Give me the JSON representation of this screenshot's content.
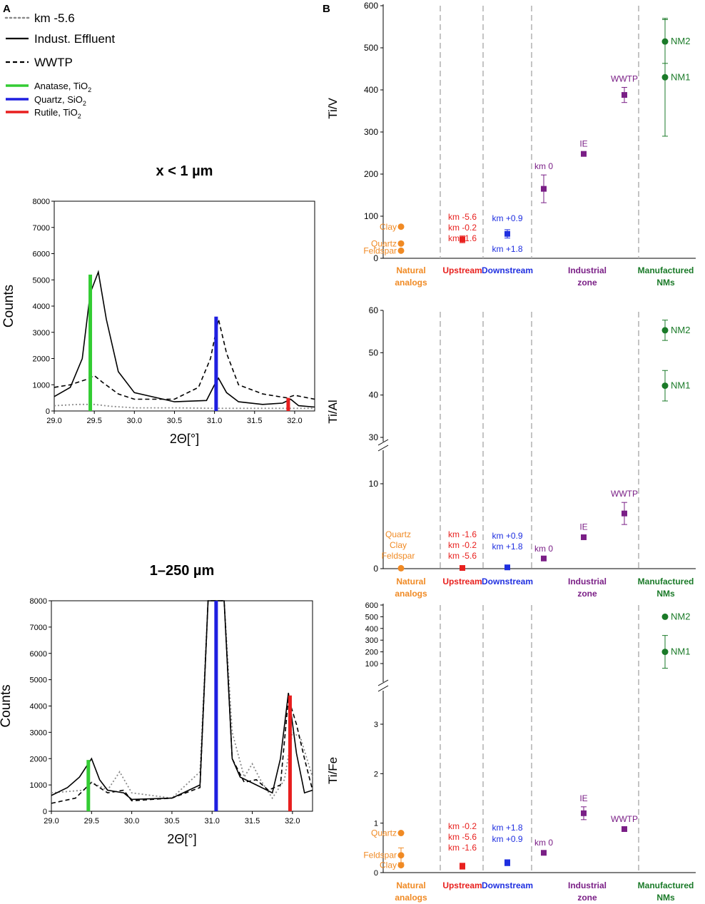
{
  "panel_labels": {
    "a": "A",
    "b": "B"
  },
  "colors": {
    "anatase": "#33cc33",
    "quartz": "#1f1fe0",
    "rutile": "#e81e1e",
    "natural": "#f08a24",
    "upstream": "#e8201e",
    "downstream": "#1f2fe0",
    "industrial": "#7a1f86",
    "nms": "#1a7a28",
    "grid": "#b5b5b5"
  },
  "legend": {
    "km56": "km -5.6",
    "ie": "Indust. Effluent",
    "wwtp": "WWTP",
    "anatase": "Anatase, TiO",
    "quartz": "Quartz, SiO",
    "rutile": "Rutile, TiO",
    "sub": "2"
  },
  "categories": [
    {
      "line1": "Natural",
      "line2": "analogs",
      "color": "#f08a24"
    },
    {
      "line1": "Upstream",
      "line2": "",
      "color": "#e8201e"
    },
    {
      "line1": "Downstream",
      "line2": "",
      "color": "#1f2fe0"
    },
    {
      "line1": "Industrial",
      "line2": "zone",
      "color": "#7a1f86"
    },
    {
      "line1": "Manufactured",
      "line2": "NMs",
      "color": "#1a7a28"
    }
  ],
  "chart_data": [
    {
      "type": "line",
      "title": "x < 1 µm",
      "xlabel": "2Θ[°]",
      "ylabel": "Counts",
      "xlim": [
        29.0,
        32.25
      ],
      "ylim": [
        0,
        8000
      ],
      "xticks": [
        29.0,
        29.5,
        30.0,
        30.5,
        31.0,
        31.5,
        32.0
      ],
      "yticks": [
        0,
        1000,
        2000,
        3000,
        4000,
        5000,
        6000,
        7000,
        8000
      ],
      "series": [
        {
          "name": "km -5.6",
          "style": "dotted",
          "x": [
            29.0,
            29.3,
            29.5,
            29.7,
            30.0,
            30.5,
            31.0,
            31.5,
            32.0,
            32.25
          ],
          "y": [
            200,
            250,
            250,
            180,
            120,
            120,
            100,
            100,
            100,
            100
          ]
        },
        {
          "name": "Indust. Effluent",
          "style": "solid",
          "x": [
            29.0,
            29.2,
            29.35,
            29.45,
            29.55,
            29.65,
            29.8,
            30.0,
            30.5,
            30.9,
            31.0,
            31.05,
            31.15,
            31.3,
            31.6,
            31.85,
            31.95,
            32.05,
            32.25
          ],
          "y": [
            550,
            900,
            2000,
            4500,
            5300,
            3500,
            1500,
            700,
            350,
            400,
            1000,
            1250,
            700,
            350,
            250,
            300,
            450,
            200,
            150
          ]
        },
        {
          "name": "WWTP",
          "style": "dashed",
          "x": [
            29.0,
            29.2,
            29.4,
            29.5,
            29.6,
            29.8,
            30.0,
            30.5,
            30.8,
            30.95,
            31.05,
            31.15,
            31.3,
            31.6,
            31.9,
            32.0,
            32.25
          ],
          "y": [
            900,
            1000,
            1200,
            1350,
            1100,
            650,
            450,
            450,
            900,
            2000,
            3500,
            2200,
            1000,
            650,
            500,
            600,
            450
          ]
        }
      ],
      "reference_lines": [
        {
          "name": "Anatase, TiO2",
          "x": 29.45,
          "height": 5200
        },
        {
          "name": "Quartz, SiO2",
          "x": 31.02,
          "height": 3600
        },
        {
          "name": "Rutile, TiO2",
          "x": 31.92,
          "height": 500
        }
      ]
    },
    {
      "type": "line",
      "title": "1–250 µm",
      "xlabel": "2Θ[°]",
      "ylabel": "Counts",
      "xlim": [
        29.0,
        32.25
      ],
      "ylim": [
        0,
        8000
      ],
      "xticks": [
        29.0,
        29.5,
        30.0,
        30.5,
        31.0,
        31.5,
        32.0
      ],
      "yticks": [
        0,
        1000,
        2000,
        3000,
        4000,
        5000,
        6000,
        7000,
        8000
      ],
      "series": [
        {
          "name": "km -5.6",
          "style": "dotted",
          "x": [
            29.0,
            29.4,
            29.5,
            29.7,
            29.85,
            30.0,
            30.5,
            30.85,
            30.95,
            31.15,
            31.25,
            31.4,
            31.5,
            31.6,
            31.75,
            31.9,
            32.0,
            32.1,
            32.25
          ],
          "y": [
            700,
            800,
            1100,
            800,
            1500,
            700,
            500,
            1500,
            8000,
            8000,
            3000,
            1300,
            1800,
            1200,
            500,
            1200,
            3000,
            2800,
            1300
          ]
        },
        {
          "name": "Indust. Effluent",
          "style": "solid",
          "x": [
            29.0,
            29.2,
            29.35,
            29.5,
            29.6,
            29.7,
            29.9,
            30.0,
            30.5,
            30.85,
            30.95,
            31.15,
            31.25,
            31.35,
            31.55,
            31.75,
            31.85,
            31.95,
            32.05,
            32.15,
            32.25
          ],
          "y": [
            600,
            900,
            1300,
            2000,
            1200,
            800,
            700,
            450,
            500,
            1000,
            8000,
            8000,
            2000,
            1300,
            1000,
            700,
            2000,
            4500,
            2200,
            700,
            800
          ]
        },
        {
          "name": "WWTP",
          "style": "dashed",
          "x": [
            29.0,
            29.3,
            29.5,
            29.7,
            29.9,
            30.0,
            30.5,
            30.85,
            30.95,
            31.15,
            31.25,
            31.4,
            31.55,
            31.7,
            31.85,
            31.95,
            32.05,
            32.15,
            32.25
          ],
          "y": [
            300,
            500,
            1100,
            700,
            800,
            400,
            500,
            900,
            8000,
            8000,
            2000,
            1100,
            1200,
            800,
            1000,
            4300,
            3300,
            2000,
            800
          ]
        }
      ],
      "reference_lines": [
        {
          "name": "Anatase, TiO2",
          "x": 29.46,
          "height": 1950
        },
        {
          "name": "Quartz, SiO2",
          "x": 31.05,
          "height": 8000
        },
        {
          "name": "Rutile, TiO2",
          "x": 31.97,
          "height": 4400
        }
      ]
    },
    {
      "type": "scatter",
      "ylabel": "Ti/V",
      "ylim": [
        0,
        600
      ],
      "yticks": [
        0,
        100,
        200,
        300,
        400,
        500,
        600
      ],
      "points": [
        {
          "group": 0,
          "marker": "circle",
          "y": 75,
          "err": 3,
          "label": "Clay",
          "label_side": "left"
        },
        {
          "group": 0,
          "marker": "circle",
          "y": 35,
          "err": 2,
          "label": "Quartz",
          "label_side": "left"
        },
        {
          "group": 0,
          "marker": "circle",
          "y": 18,
          "err": 2,
          "label": "Feldspar",
          "label_side": "left"
        },
        {
          "group": 1,
          "marker": "square",
          "y": 45,
          "err": 8
        },
        {
          "group": 2,
          "marker": "square",
          "y": 58,
          "err": 10
        },
        {
          "group": 3,
          "marker": "square",
          "x_slot": 0,
          "y": 165,
          "err": 33,
          "label": "km 0",
          "label_side": "above"
        },
        {
          "group": 3,
          "marker": "square",
          "x_slot": 1,
          "y": 248,
          "err": 4,
          "label": "IE",
          "label_side": "above"
        },
        {
          "group": 3,
          "marker": "square",
          "x_slot": 2,
          "y": 388,
          "err": 18,
          "label": "WWTP",
          "label_side": "above"
        },
        {
          "group": 4,
          "marker": "circle",
          "y": 515,
          "err": 52,
          "label": "NM2",
          "label_side": "right"
        },
        {
          "group": 4,
          "marker": "circle",
          "y": 430,
          "err": 140,
          "label": "NM1",
          "label_side": "right"
        }
      ],
      "group_labels": [
        {
          "group": 1,
          "lines": [
            "km -5.6",
            "km -0.2",
            "km -1.6"
          ]
        },
        {
          "group": 2,
          "lines": [
            "km +0.9",
            "km +1.8"
          ]
        }
      ]
    },
    {
      "type": "scatter",
      "ylabel": "Ti/Al",
      "axis_break": [
        14,
        30
      ],
      "yticks": [
        0,
        10,
        30,
        40,
        50,
        60
      ],
      "points": [
        {
          "group": 0,
          "marker": "circle",
          "y": 0.05,
          "err": 0
        },
        {
          "group": 1,
          "marker": "square",
          "y": 0.08,
          "err": 0
        },
        {
          "group": 2,
          "marker": "square",
          "y": 0.15,
          "err": 0
        },
        {
          "group": 3,
          "marker": "square",
          "x_slot": 0,
          "y": 1.2,
          "err": 0.15,
          "label": "km 0",
          "label_side": "above"
        },
        {
          "group": 3,
          "marker": "square",
          "x_slot": 1,
          "y": 3.7,
          "err": 0.2,
          "label": "IE",
          "label_side": "above"
        },
        {
          "group": 3,
          "marker": "square",
          "x_slot": 2,
          "y": 6.5,
          "err": 1.3,
          "label": "WWTP",
          "label_side": "above"
        },
        {
          "group": 4,
          "marker": "circle",
          "y": 55.3,
          "err": 2.4,
          "label": "NM2",
          "label_side": "right"
        },
        {
          "group": 4,
          "marker": "circle",
          "y": 42.2,
          "err": 3.6,
          "label": "NM1",
          "label_side": "right"
        }
      ],
      "group_labels": [
        {
          "group": 0,
          "lines": [
            "Quartz",
            "Clay",
            "Feldspar"
          ]
        },
        {
          "group": 1,
          "lines": [
            "km -1.6",
            "km -0.2",
            "km -5.6"
          ]
        },
        {
          "group": 2,
          "lines": [
            "km +0.9",
            "km +1.8"
          ]
        }
      ]
    },
    {
      "type": "scatter",
      "ylabel": "Ti/Fe",
      "axis_break": [
        3.5,
        50
      ],
      "yticks": [
        0,
        1,
        2,
        3,
        100,
        200,
        300,
        400,
        500,
        600
      ],
      "points": [
        {
          "group": 0,
          "marker": "circle",
          "y": 0.8,
          "err": 0.02,
          "label": "Quartz",
          "label_side": "left"
        },
        {
          "group": 0,
          "marker": "circle",
          "y": 0.35,
          "err": 0.15,
          "label": "Feldspar",
          "label_side": "left"
        },
        {
          "group": 0,
          "marker": "circle",
          "y": 0.15,
          "err": 0.02,
          "label": "Clay",
          "label_side": "left"
        },
        {
          "group": 1,
          "marker": "square",
          "y": 0.13,
          "err": 0.06
        },
        {
          "group": 2,
          "marker": "square",
          "y": 0.2,
          "err": 0.06
        },
        {
          "group": 3,
          "marker": "square",
          "x_slot": 0,
          "y": 0.4,
          "err": 0.03,
          "label": "km 0",
          "label_side": "above"
        },
        {
          "group": 3,
          "marker": "square",
          "x_slot": 1,
          "y": 1.2,
          "err": 0.13,
          "label": "IE",
          "label_side": "above"
        },
        {
          "group": 3,
          "marker": "square",
          "x_slot": 2,
          "y": 0.88,
          "err": 0.03,
          "label": "WWTP",
          "label_side": "above"
        },
        {
          "group": 4,
          "marker": "circle",
          "y": 500,
          "err": 10,
          "label": "NM2",
          "label_side": "right"
        },
        {
          "group": 4,
          "marker": "circle",
          "y": 200,
          "err": 140,
          "label": "NM1",
          "label_side": "right"
        }
      ],
      "group_labels": [
        {
          "group": 1,
          "lines": [
            "km -0.2",
            "km -5.6",
            "km -1.6"
          ]
        },
        {
          "group": 2,
          "lines": [
            "km +1.8",
            "km +0.9"
          ]
        }
      ]
    }
  ]
}
